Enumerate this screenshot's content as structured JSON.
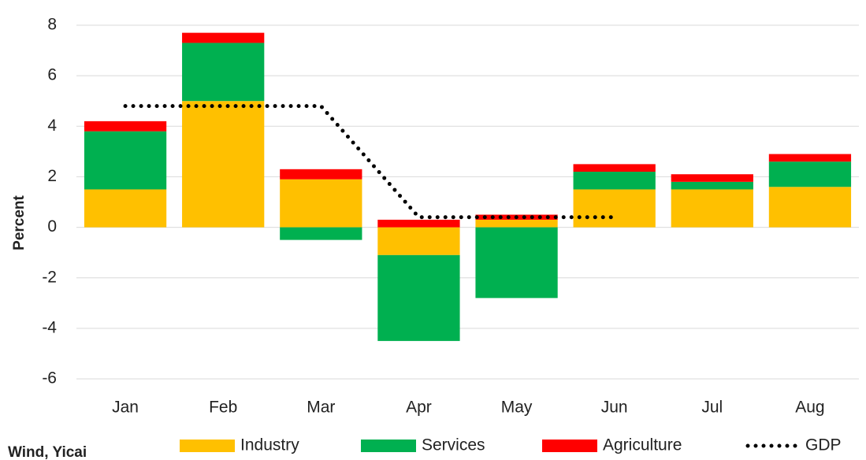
{
  "chart_data": {
    "type": "bar",
    "y_label": "Percent",
    "source": "Wind, Yicai",
    "categories": [
      "Jan",
      "Feb",
      "Mar",
      "Apr",
      "May",
      "Jun",
      "Jul",
      "Aug"
    ],
    "series": [
      {
        "name": "Industry",
        "color": "#ffc000",
        "values": [
          1.5,
          5.0,
          1.9,
          -1.1,
          0.3,
          1.5,
          1.5,
          1.6
        ]
      },
      {
        "name": "Services",
        "color": "#00b050",
        "values": [
          2.3,
          2.3,
          -0.5,
          -3.4,
          -2.8,
          0.7,
          0.3,
          1.0
        ]
      },
      {
        "name": "Agriculture",
        "color": "#ff0000",
        "values": [
          0.4,
          0.4,
          0.4,
          0.3,
          0.2,
          0.3,
          0.3,
          0.3
        ]
      },
      {
        "name": "GDP",
        "type": "line",
        "style": "dotted",
        "color": "#000000",
        "values": [
          4.8,
          4.8,
          4.8,
          0.4,
          0.4,
          0.4,
          null,
          null
        ]
      }
    ],
    "ylim": [
      -6,
      8
    ],
    "yticks": [
      -6,
      -4,
      -2,
      0,
      2,
      4,
      6,
      8
    ],
    "grid": true,
    "legend": "bottom"
  }
}
